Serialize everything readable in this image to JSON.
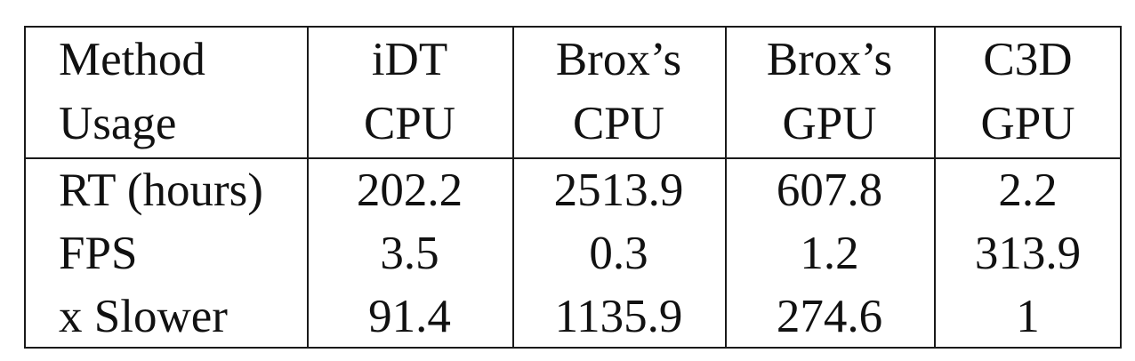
{
  "table": {
    "header": [
      [
        "Method",
        "iDT",
        "Brox’s",
        "Brox’s",
        "C3D"
      ],
      [
        "Usage",
        "CPU",
        "CPU",
        "GPU",
        "GPU"
      ]
    ],
    "rows": [
      [
        "RT (hours)",
        "202.2",
        "2513.9",
        "607.8",
        "2.2"
      ],
      [
        "FPS",
        "3.5",
        "0.3",
        "1.2",
        "313.9"
      ],
      [
        "x Slower",
        "91.4",
        "1135.9",
        "274.6",
        "1"
      ]
    ]
  }
}
